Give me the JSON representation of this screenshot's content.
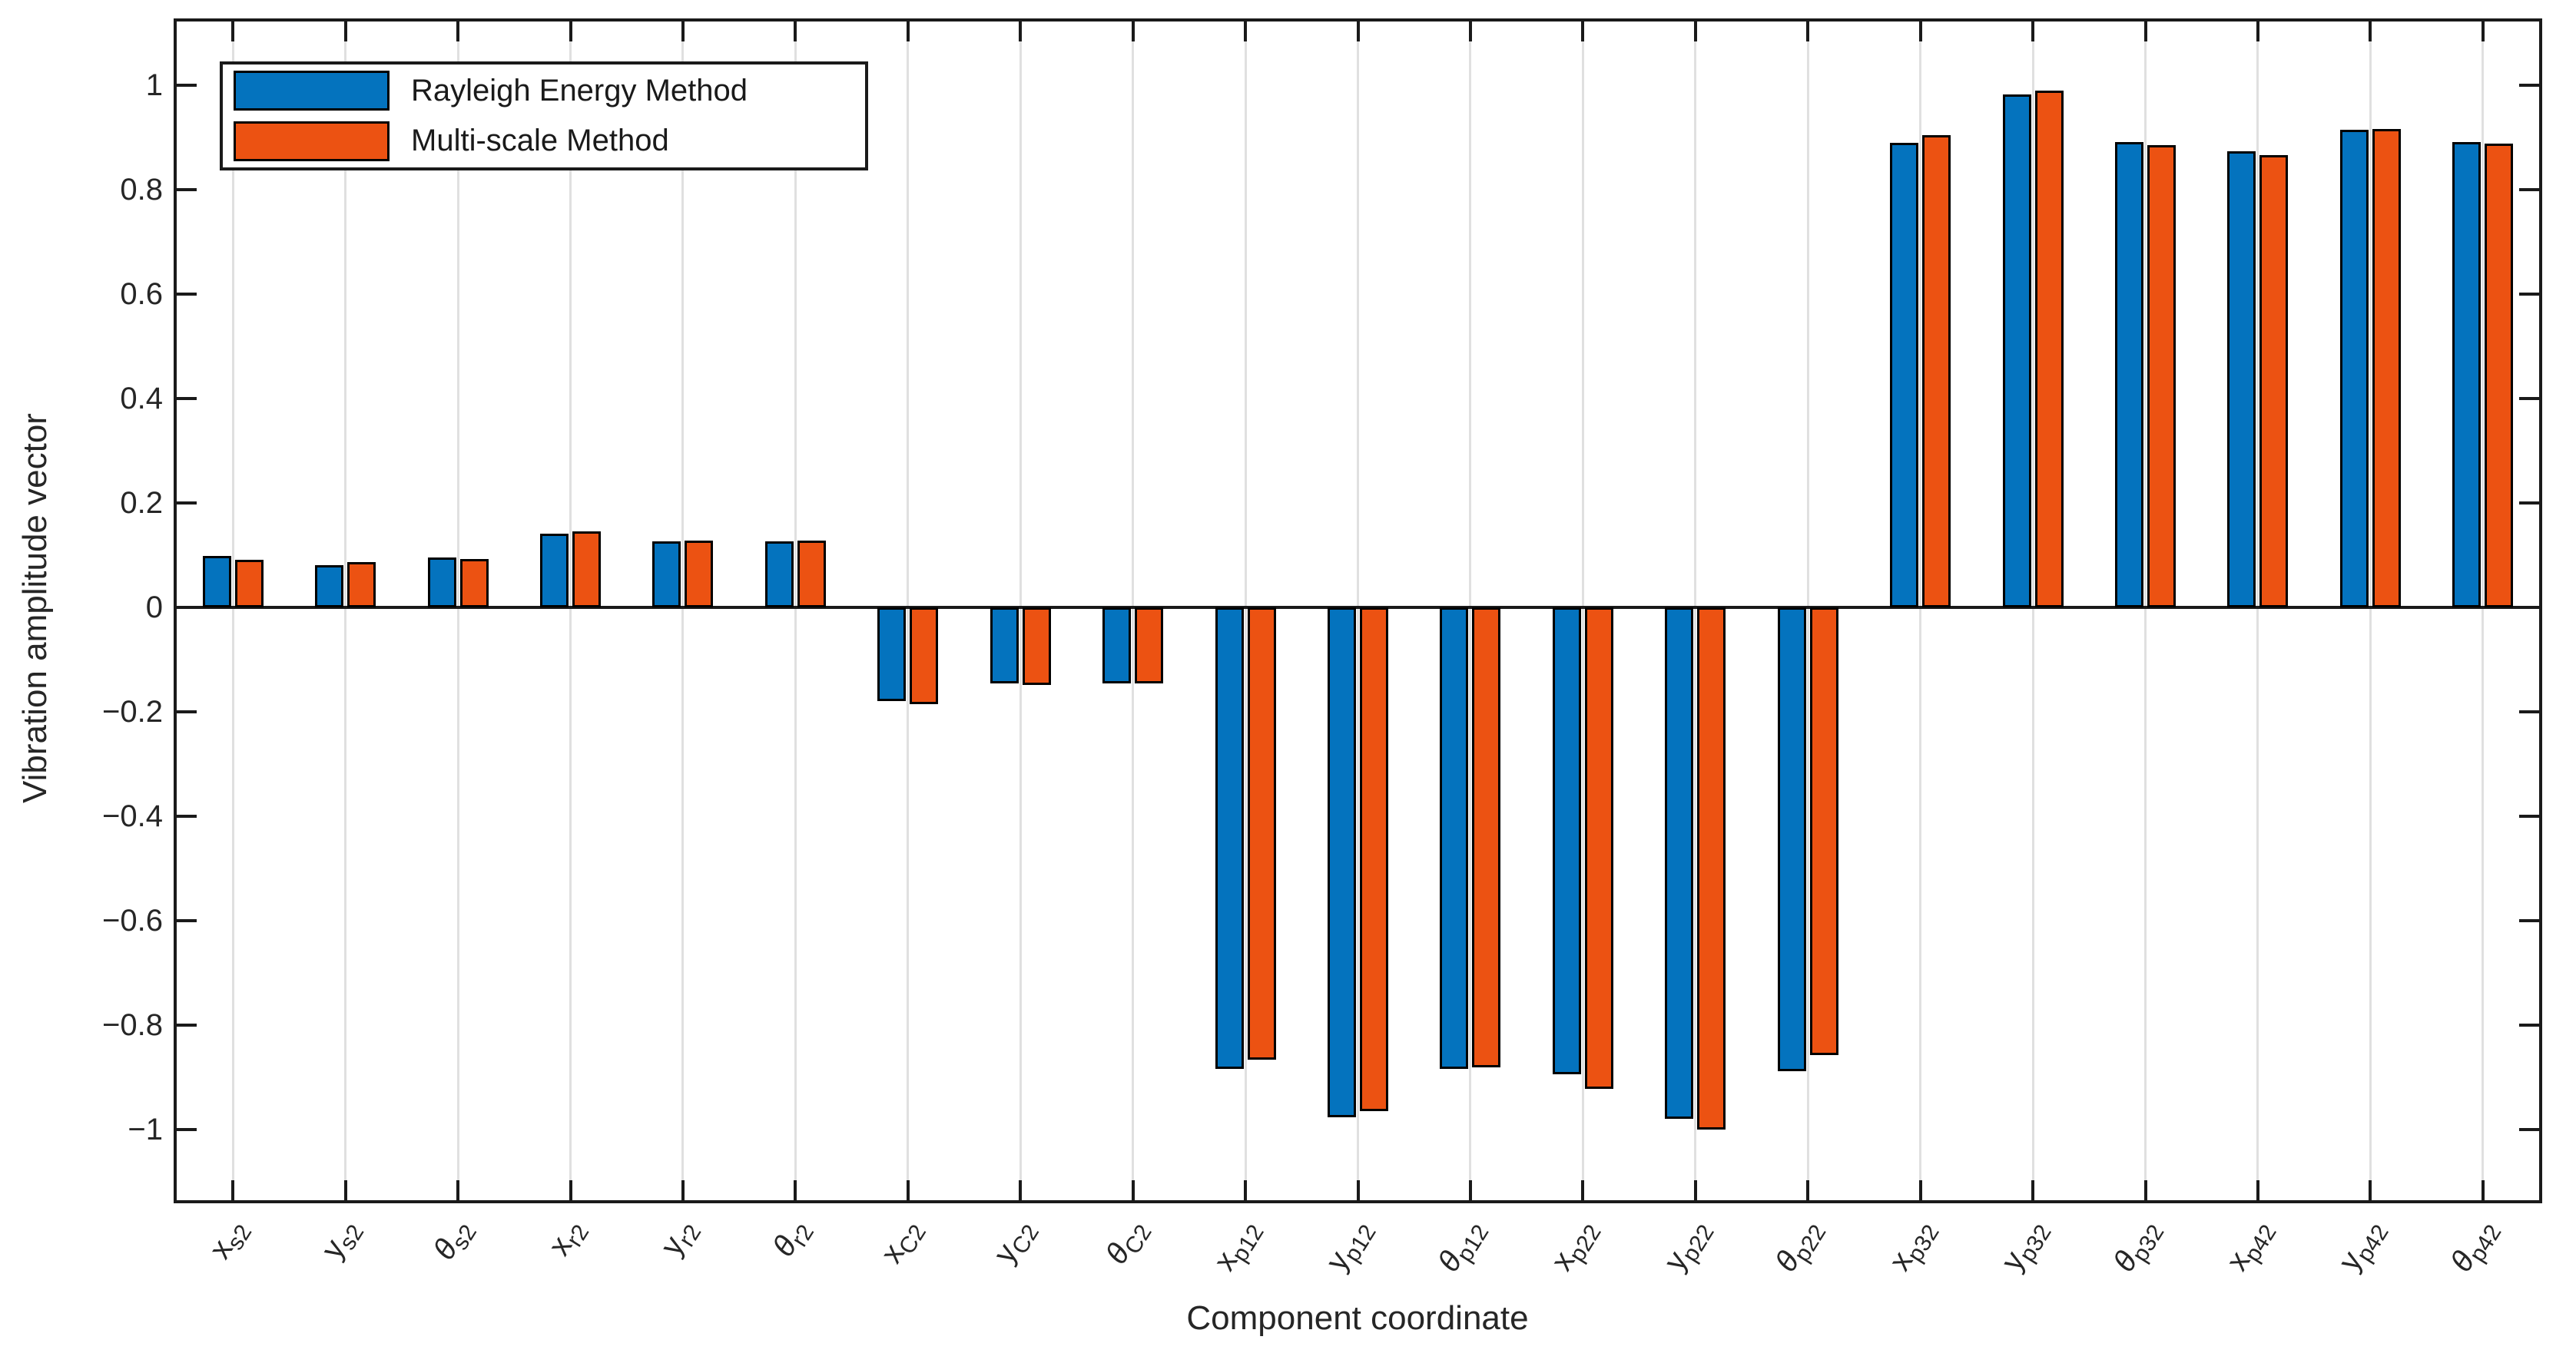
{
  "chart_data": {
    "type": "bar",
    "title": "",
    "xlabel": "Component coordinate",
    "ylabel": "Vibration amplitude vector",
    "legend_position": "top-left-inside",
    "grid": {
      "vertical": true,
      "horizontal": false,
      "color": "#e0e0e0"
    },
    "ylim": [
      -1.14,
      1.12
    ],
    "yticks": {
      "values": [
        1,
        0.8,
        0.6,
        0.4,
        0.2,
        0,
        -0.2,
        -0.4,
        -0.6,
        -0.8,
        -1
      ],
      "labels": [
        "1",
        "0.8",
        "0.6",
        "0.4",
        "0.2",
        "0",
        "−0.2",
        "−0.4",
        "−0.6",
        "−0.8",
        "−1"
      ]
    },
    "categories": [
      {
        "main": "x",
        "sub": "s2"
      },
      {
        "main": "y",
        "sub": "s2"
      },
      {
        "main": "θ",
        "sub": "s2"
      },
      {
        "main": "x",
        "sub": "r2"
      },
      {
        "main": "y",
        "sub": "r2"
      },
      {
        "main": "θ",
        "sub": "r2"
      },
      {
        "main": "x",
        "sub": "C2"
      },
      {
        "main": "y",
        "sub": "C2"
      },
      {
        "main": "θ",
        "sub": "C2"
      },
      {
        "main": "x",
        "sub": "p12"
      },
      {
        "main": "y",
        "sub": "p12"
      },
      {
        "main": "θ",
        "sub": "p12"
      },
      {
        "main": "x",
        "sub": "p22"
      },
      {
        "main": "y",
        "sub": "p22"
      },
      {
        "main": "θ",
        "sub": "p22"
      },
      {
        "main": "x",
        "sub": "p32"
      },
      {
        "main": "y",
        "sub": "p32"
      },
      {
        "main": "θ",
        "sub": "p32"
      },
      {
        "main": "x",
        "sub": "p42"
      },
      {
        "main": "y",
        "sub": "p42"
      },
      {
        "main": "θ",
        "sub": "p42"
      }
    ],
    "series": [
      {
        "name": "Rayleigh Energy Method",
        "color": "#0473be",
        "values": [
          0.099,
          0.081,
          0.095,
          0.141,
          0.127,
          0.126,
          -0.18,
          -0.145,
          -0.145,
          -0.884,
          -0.976,
          -0.884,
          -0.894,
          -0.979,
          -0.888,
          0.89,
          0.982,
          0.891,
          0.874,
          0.914,
          0.891
        ]
      },
      {
        "name": "Multi-scale Method",
        "color": "#ec5212",
        "values": [
          0.091,
          0.087,
          0.093,
          0.146,
          0.128,
          0.128,
          -0.185,
          -0.148,
          -0.146,
          -0.866,
          -0.965,
          -0.881,
          -0.922,
          -1.0,
          -0.857,
          0.905,
          0.99,
          0.885,
          0.866,
          0.916,
          0.888
        ]
      }
    ]
  }
}
